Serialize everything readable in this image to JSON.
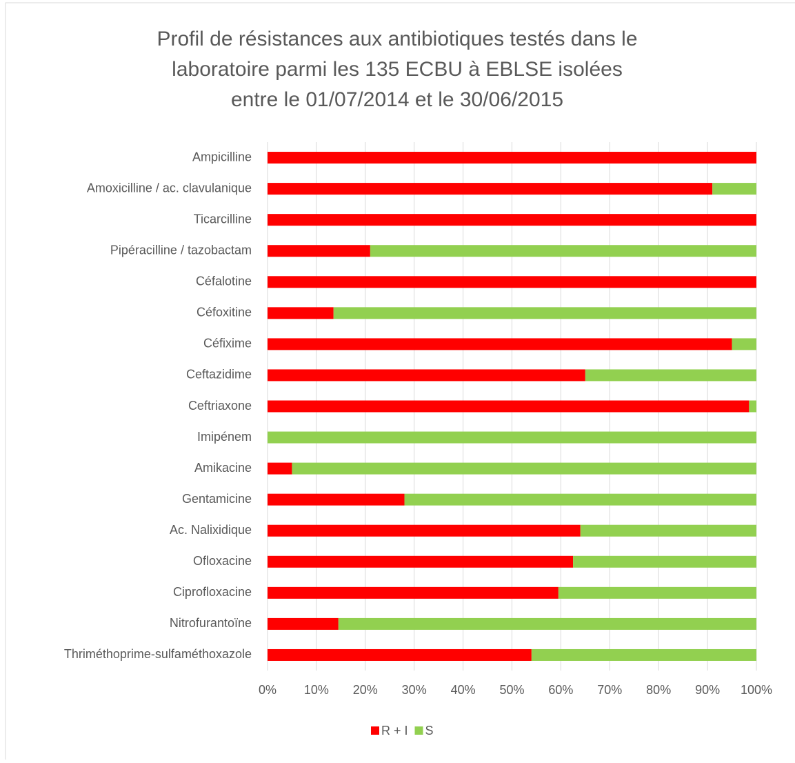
{
  "chart_data": {
    "type": "stacked_barh",
    "title": [
      "Profil de résistances aux antibiotiques testés dans le",
      "laboratoire parmi les 135 ECBU à EBLSE isolées",
      "entre le 01/07/2014 et le 30/06/2015"
    ],
    "categories": [
      "Ampicilline",
      "Amoxicilline / ac. clavulanique",
      "Ticarcilline",
      "Pipéracilline / tazobactam",
      "Céfalotine",
      "Céfoxitine",
      "Céfixime",
      "Ceftazidime",
      "Ceftriaxone",
      "Imipénem",
      "Amikacine",
      "Gentamicine",
      "Ac. Nalixidique",
      "Ofloxacine",
      "Ciprofloxacine",
      "Nitrofurantoïne",
      "Thriméthoprime-sulfaméthoxazole"
    ],
    "series": [
      {
        "name": "R + I",
        "color": "#ff0000",
        "values": [
          100,
          91,
          100,
          21,
          100,
          13.5,
          95,
          65,
          98.5,
          0,
          5,
          28,
          64,
          62.5,
          59.5,
          14.5,
          54
        ]
      },
      {
        "name": "S",
        "color": "#92d050",
        "values": [
          0,
          9,
          0,
          79,
          0,
          86.5,
          5,
          35,
          1.5,
          100,
          95,
          72,
          36,
          37.5,
          40.5,
          85.5,
          46
        ]
      }
    ],
    "xlim": [
      0,
      100
    ],
    "xticks": [
      {
        "value": 0,
        "label": "0%"
      },
      {
        "value": 10,
        "label": "10%"
      },
      {
        "value": 20,
        "label": "20%"
      },
      {
        "value": 30,
        "label": "30%"
      },
      {
        "value": 40,
        "label": "40%"
      },
      {
        "value": 50,
        "label": "50%"
      },
      {
        "value": 60,
        "label": "60%"
      },
      {
        "value": 70,
        "label": "70%"
      },
      {
        "value": 80,
        "label": "80%"
      },
      {
        "value": 90,
        "label": "90%"
      },
      {
        "value": 100,
        "label": "100%"
      }
    ],
    "grid": true,
    "legend": "bottom"
  }
}
